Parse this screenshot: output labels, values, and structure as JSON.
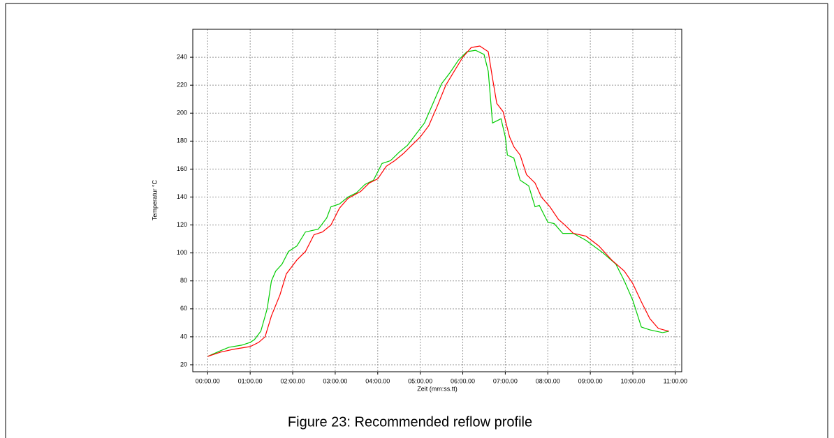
{
  "chart_data": {
    "type": "line",
    "caption": "Figure 23: Recommended reflow profile",
    "x_label": "Zeit (mm:ss.tt)",
    "y_label": "Temperatur °C",
    "grid": true,
    "xlim": [
      -0.35,
      11.15
    ],
    "ylim": [
      15,
      260
    ],
    "xticks": [
      {
        "value": 0,
        "label": "00:00.00"
      },
      {
        "value": 1,
        "label": "01:00.00"
      },
      {
        "value": 2,
        "label": "02:00.00"
      },
      {
        "value": 3,
        "label": "03:00.00"
      },
      {
        "value": 4,
        "label": "04:00.00"
      },
      {
        "value": 5,
        "label": "05:00.00"
      },
      {
        "value": 6,
        "label": "06:00.00"
      },
      {
        "value": 7,
        "label": "07:00.00"
      },
      {
        "value": 8,
        "label": "08:00.00"
      },
      {
        "value": 9,
        "label": "09:00.00"
      },
      {
        "value": 10,
        "label": "10:00.00"
      },
      {
        "value": 11,
        "label": "11:00.00"
      }
    ],
    "yticks": [
      20,
      40,
      60,
      80,
      100,
      120,
      140,
      160,
      180,
      200,
      220,
      240
    ],
    "series": [
      {
        "color": "#00cc00",
        "x": [
          0,
          0.3,
          0.5,
          0.8,
          1.0,
          1.1,
          1.25,
          1.4,
          1.5,
          1.6,
          1.75,
          1.9,
          2.1,
          2.3,
          2.6,
          2.8,
          2.9,
          3.1,
          3.3,
          3.5,
          3.7,
          3.9,
          4.1,
          4.3,
          4.5,
          4.7,
          4.9,
          5.1,
          5.3,
          5.5,
          5.7,
          5.9,
          6.1,
          6.3,
          6.5,
          6.6,
          6.7,
          6.9,
          7.0,
          7.05,
          7.2,
          7.35,
          7.55,
          7.7,
          7.8,
          8.0,
          8.15,
          8.35,
          8.6,
          8.9,
          9.3,
          9.6,
          9.8,
          10.0,
          10.2,
          10.4,
          10.7,
          10.85
        ],
        "values": [
          26,
          30,
          32.5,
          34,
          36,
          38,
          44,
          60,
          80,
          87,
          92,
          101,
          105,
          115,
          117,
          125,
          133,
          135,
          140,
          143,
          149,
          152,
          164,
          166,
          172,
          177,
          185,
          193,
          207,
          221,
          229,
          238,
          244,
          245,
          242,
          230,
          193,
          196,
          183,
          170,
          168,
          152,
          148,
          133,
          134,
          122,
          121,
          114,
          114,
          109,
          100,
          92,
          80,
          66,
          47,
          45,
          43,
          44
        ]
      },
      {
        "color": "#ff0000",
        "x": [
          0,
          0.3,
          0.6,
          1.0,
          1.2,
          1.35,
          1.5,
          1.7,
          1.85,
          2.1,
          2.3,
          2.5,
          2.7,
          2.9,
          3.1,
          3.3,
          3.6,
          3.8,
          4.0,
          4.2,
          4.4,
          4.6,
          4.8,
          5.0,
          5.2,
          5.4,
          5.6,
          5.8,
          6.0,
          6.2,
          6.4,
          6.6,
          6.7,
          6.8,
          6.95,
          7.1,
          7.2,
          7.35,
          7.5,
          7.7,
          7.85,
          8.05,
          8.25,
          8.4,
          8.6,
          8.9,
          9.2,
          9.5,
          9.8,
          10.0,
          10.2,
          10.4,
          10.6,
          10.85
        ],
        "values": [
          26,
          29,
          31,
          33,
          36,
          40,
          55,
          70,
          85,
          95,
          101,
          113,
          115,
          120,
          132,
          139,
          144,
          150,
          153,
          162,
          166,
          171,
          177,
          183,
          191,
          205,
          220,
          230,
          240,
          247,
          248,
          244,
          225,
          207,
          201,
          183,
          176,
          170,
          156,
          150,
          140,
          133,
          124,
          120,
          114,
          112,
          105,
          95,
          87,
          78,
          65,
          53,
          46,
          44
        ]
      }
    ]
  }
}
